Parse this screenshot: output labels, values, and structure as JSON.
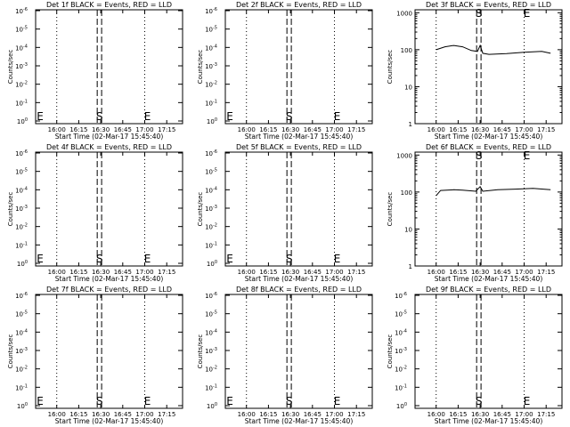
{
  "chart_data": [
    {
      "type": "line",
      "title": "Det 1f BLACK = Events, RED = LLD",
      "ylabel": "Counts/sec",
      "xlabel": "Start Time (02-Mar-17 15:45:40)",
      "x_ticks": [
        "16:00",
        "16:15",
        "16:30",
        "16:45",
        "17:00",
        "17:15"
      ],
      "y_ticks": [
        "10^0",
        "10^-1",
        "10^-2",
        "10^-3",
        "10^-4",
        "10^-5",
        "10^-6"
      ],
      "markers": {
        "start": "S",
        "end": "E",
        "left_end": "E"
      },
      "series": []
    },
    {
      "type": "line",
      "title": "Det 2f BLACK = Events, RED = LLD",
      "ylabel": "Counts/sec",
      "xlabel": "Start Time (02-Mar-17 15:45:40)",
      "x_ticks": [
        "16:00",
        "16:15",
        "16:30",
        "16:45",
        "17:00",
        "17:15"
      ],
      "y_ticks": [
        "10^0",
        "10^-1",
        "10^-2",
        "10^-3",
        "10^-4",
        "10^-5",
        "10^-6"
      ],
      "markers": {
        "start": "S",
        "end": "E",
        "left_end": "E"
      },
      "series": []
    },
    {
      "type": "line",
      "title": "Det 3f BLACK = Events, RED = LLD",
      "ylabel": "Counts/sec",
      "xlabel": "Start Time (02-Mar-17 15:45:40)",
      "x_ticks": [
        "16:00",
        "16:15",
        "16:30",
        "16:45",
        "17:00",
        "17:15"
      ],
      "y_ticks": [
        "1",
        "10",
        "100",
        "1000"
      ],
      "markers": {
        "start": "S",
        "end": "E"
      },
      "series": [
        {
          "values": [
            [
              16.0,
              100
            ],
            [
              16.1,
              120
            ],
            [
              16.2,
              130
            ],
            [
              16.3,
              120
            ],
            [
              16.4,
              95
            ],
            [
              16.47,
              90
            ],
            [
              16.5,
              130
            ],
            [
              16.53,
              80
            ],
            [
              16.6,
              75
            ],
            [
              16.8,
              78
            ],
            [
              17.0,
              85
            ],
            [
              17.2,
              90
            ],
            [
              17.3,
              80
            ]
          ]
        }
      ]
    },
    {
      "type": "line",
      "title": "Det 4f BLACK = Events, RED = LLD",
      "ylabel": "Counts/sec",
      "xlabel": "Start Time (02-Mar-17 15:45:40)",
      "x_ticks": [
        "16:00",
        "16:15",
        "16:30",
        "16:45",
        "17:00",
        "17:15"
      ],
      "y_ticks": [
        "10^0",
        "10^-1",
        "10^-2",
        "10^-3",
        "10^-4",
        "10^-5",
        "10^-6"
      ],
      "markers": {
        "start": "S",
        "end": "E",
        "left_end": "E"
      },
      "series": []
    },
    {
      "type": "line",
      "title": "Det 5f BLACK = Events, RED = LLD",
      "ylabel": "Counts/sec",
      "xlabel": "Start Time (02-Mar-17 15:45:40)",
      "x_ticks": [
        "16:00",
        "16:15",
        "16:30",
        "16:45",
        "17:00",
        "17:15"
      ],
      "y_ticks": [
        "10^0",
        "10^-1",
        "10^-2",
        "10^-3",
        "10^-4",
        "10^-5",
        "10^-6"
      ],
      "markers": {
        "start": "S",
        "end": "E",
        "left_end": "E"
      },
      "series": []
    },
    {
      "type": "line",
      "title": "Det 6f BLACK = Events, RED = LLD",
      "ylabel": "Counts/sec",
      "xlabel": "Start Time (02-Mar-17 15:45:40)",
      "x_ticks": [
        "16:00",
        "16:15",
        "16:30",
        "16:45",
        "17:00",
        "17:15"
      ],
      "y_ticks": [
        "1",
        "10",
        "100",
        "1000"
      ],
      "markers": {
        "start": "S",
        "end": "E"
      },
      "series": [
        {
          "values": [
            [
              16.0,
              80
            ],
            [
              16.05,
              110
            ],
            [
              16.2,
              115
            ],
            [
              16.3,
              112
            ],
            [
              16.45,
              105
            ],
            [
              16.5,
              140
            ],
            [
              16.53,
              105
            ],
            [
              16.7,
              115
            ],
            [
              16.9,
              120
            ],
            [
              17.1,
              125
            ],
            [
              17.3,
              115
            ]
          ]
        }
      ]
    },
    {
      "type": "line",
      "title": "Det 7f BLACK = Events, RED = LLD",
      "ylabel": "Counts/sec",
      "xlabel": "Start Time (02-Mar-17 15:45:40)",
      "x_ticks": [
        "16:00",
        "16:15",
        "16:30",
        "16:45",
        "17:00",
        "17:15"
      ],
      "y_ticks": [
        "10^0",
        "10^-1",
        "10^-2",
        "10^-3",
        "10^-4",
        "10^-5",
        "10^-6"
      ],
      "markers": {
        "start": "S",
        "end": "E",
        "left_end": "E"
      },
      "series": []
    },
    {
      "type": "line",
      "title": "Det 8f BLACK = Events, RED = LLD",
      "ylabel": "Counts/sec",
      "xlabel": "Start Time (02-Mar-17 15:45:40)",
      "x_ticks": [
        "16:00",
        "16:15",
        "16:30",
        "16:45",
        "17:00",
        "17:15"
      ],
      "y_ticks": [
        "10^0",
        "10^-1",
        "10^-2",
        "10^-3",
        "10^-4",
        "10^-5",
        "10^-6"
      ],
      "markers": {
        "start": "S",
        "end": "E",
        "left_end": "E"
      },
      "series": []
    },
    {
      "type": "line",
      "title": "Det 9f BLACK = Events, RED = LLD",
      "ylabel": "Counts/sec",
      "xlabel": "Start Time (02-Mar-17 15:45:40)",
      "x_ticks": [
        "16:00",
        "16:15",
        "16:30",
        "16:45",
        "17:00",
        "17:15"
      ],
      "y_ticks": [
        "10^0",
        "10^-1",
        "10^-2",
        "10^-3",
        "10^-4",
        "10^-5",
        "10^-6"
      ],
      "markers": {
        "start": "S",
        "end": "E"
      },
      "series": []
    }
  ]
}
